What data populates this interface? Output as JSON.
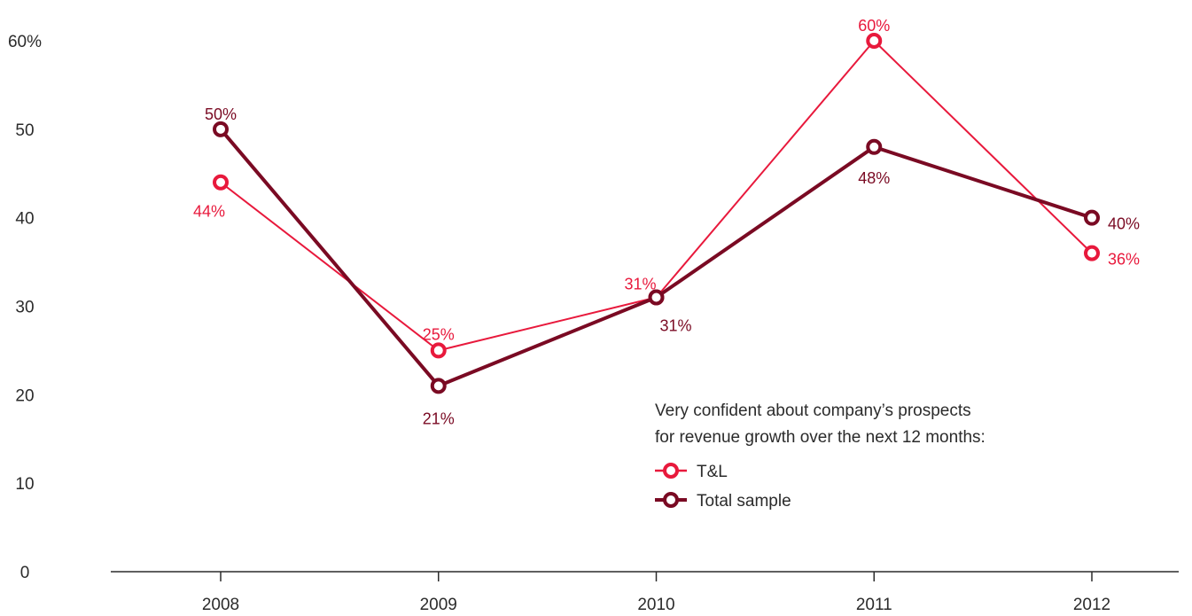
{
  "chart_data": {
    "type": "line",
    "categories": [
      "2008",
      "2009",
      "2010",
      "2011",
      "2012"
    ],
    "y_ticks": [
      "0",
      "10",
      "20",
      "30",
      "40",
      "50",
      "60%"
    ],
    "ylim": [
      0,
      60
    ],
    "grid": false,
    "series": [
      {
        "name": "T&L",
        "color": "#e8193c",
        "values": [
          44,
          25,
          31,
          60,
          36
        ],
        "labels": [
          "44%",
          "25%",
          "31%",
          "60%",
          "36%"
        ]
      },
      {
        "name": "Total sample",
        "color": "#7a0a23",
        "values": [
          50,
          21,
          31,
          48,
          40
        ],
        "labels": [
          "50%",
          "21%",
          "31%",
          "48%",
          "40%"
        ]
      }
    ],
    "legend": {
      "title_line1": "Very confident about company’s prospects",
      "title_line2": "for revenue growth over the next 12 months:",
      "placement": "bottom-right"
    }
  }
}
